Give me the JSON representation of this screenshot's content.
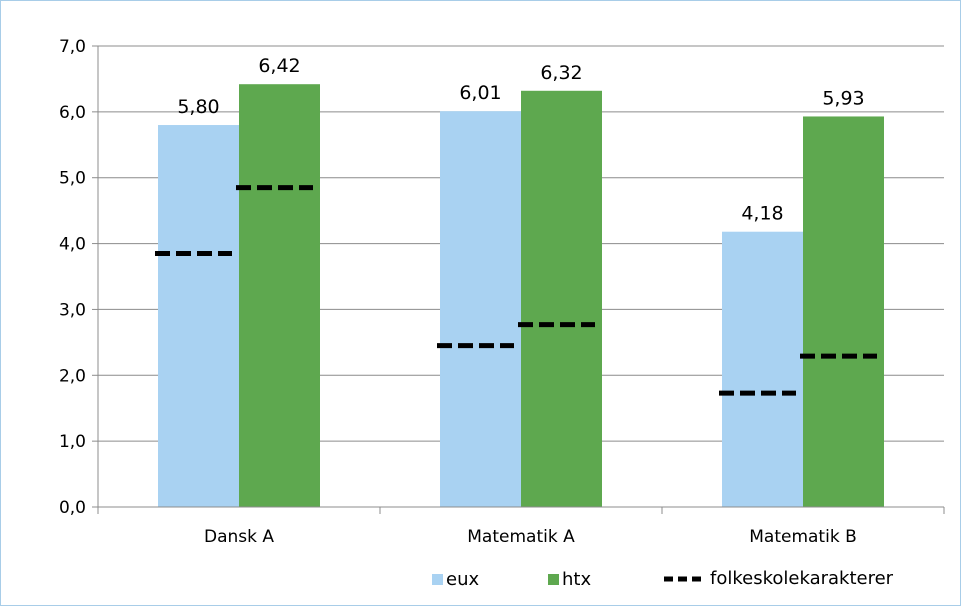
{
  "chart_data": {
    "type": "bar",
    "title": "",
    "xlabel": "",
    "ylabel": "",
    "ylim": [
      0,
      7
    ],
    "yticks": [
      "0,0",
      "1,0",
      "2,0",
      "3,0",
      "4,0",
      "5,0",
      "6,0",
      "7,0"
    ],
    "grid": true,
    "legend_position": "bottom-right",
    "categories": [
      "Dansk A",
      "Matematik A",
      "Matematik B"
    ],
    "series": [
      {
        "name": "eux",
        "color": "#a9d2f2",
        "values": [
          5.8,
          6.01,
          4.18
        ],
        "labels": [
          "5,80",
          "6,01",
          "4,18"
        ]
      },
      {
        "name": "htx",
        "color": "#5ea84f",
        "values": [
          6.42,
          6.32,
          5.93
        ],
        "labels": [
          "6,42",
          "6,32",
          "5,93"
        ]
      }
    ],
    "markers": {
      "name": "folkeskolekarakterer",
      "style": "dashed",
      "color": "#000000",
      "eux": [
        3.85,
        2.45,
        1.73
      ],
      "htx": [
        4.85,
        2.77,
        2.29
      ]
    }
  }
}
